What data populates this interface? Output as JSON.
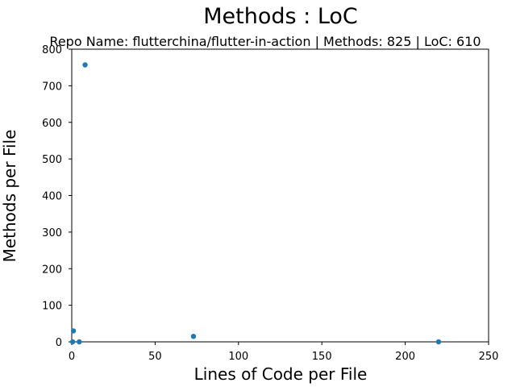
{
  "chart_data": {
    "type": "scatter",
    "title": "Methods : LoC",
    "subtitle": "Repo Name: flutterchina/flutter-in-action | Methods: 825 | LoC: 610",
    "xlabel": "Lines of Code per File",
    "ylabel": "Methods per File",
    "xlim": [
      0,
      250
    ],
    "ylim": [
      0,
      800
    ],
    "xticks": [
      0,
      50,
      100,
      150,
      200,
      250
    ],
    "yticks": [
      0,
      100,
      200,
      300,
      400,
      500,
      600,
      700,
      800
    ],
    "grid": false,
    "legend": "none",
    "marker_color": "#1f77b4",
    "points": [
      {
        "x": 0.5,
        "y": 0
      },
      {
        "x": 1,
        "y": 30
      },
      {
        "x": 4.5,
        "y": 0
      },
      {
        "x": 8,
        "y": 757
      },
      {
        "x": 73,
        "y": 15
      },
      {
        "x": 220,
        "y": 0
      }
    ]
  }
}
